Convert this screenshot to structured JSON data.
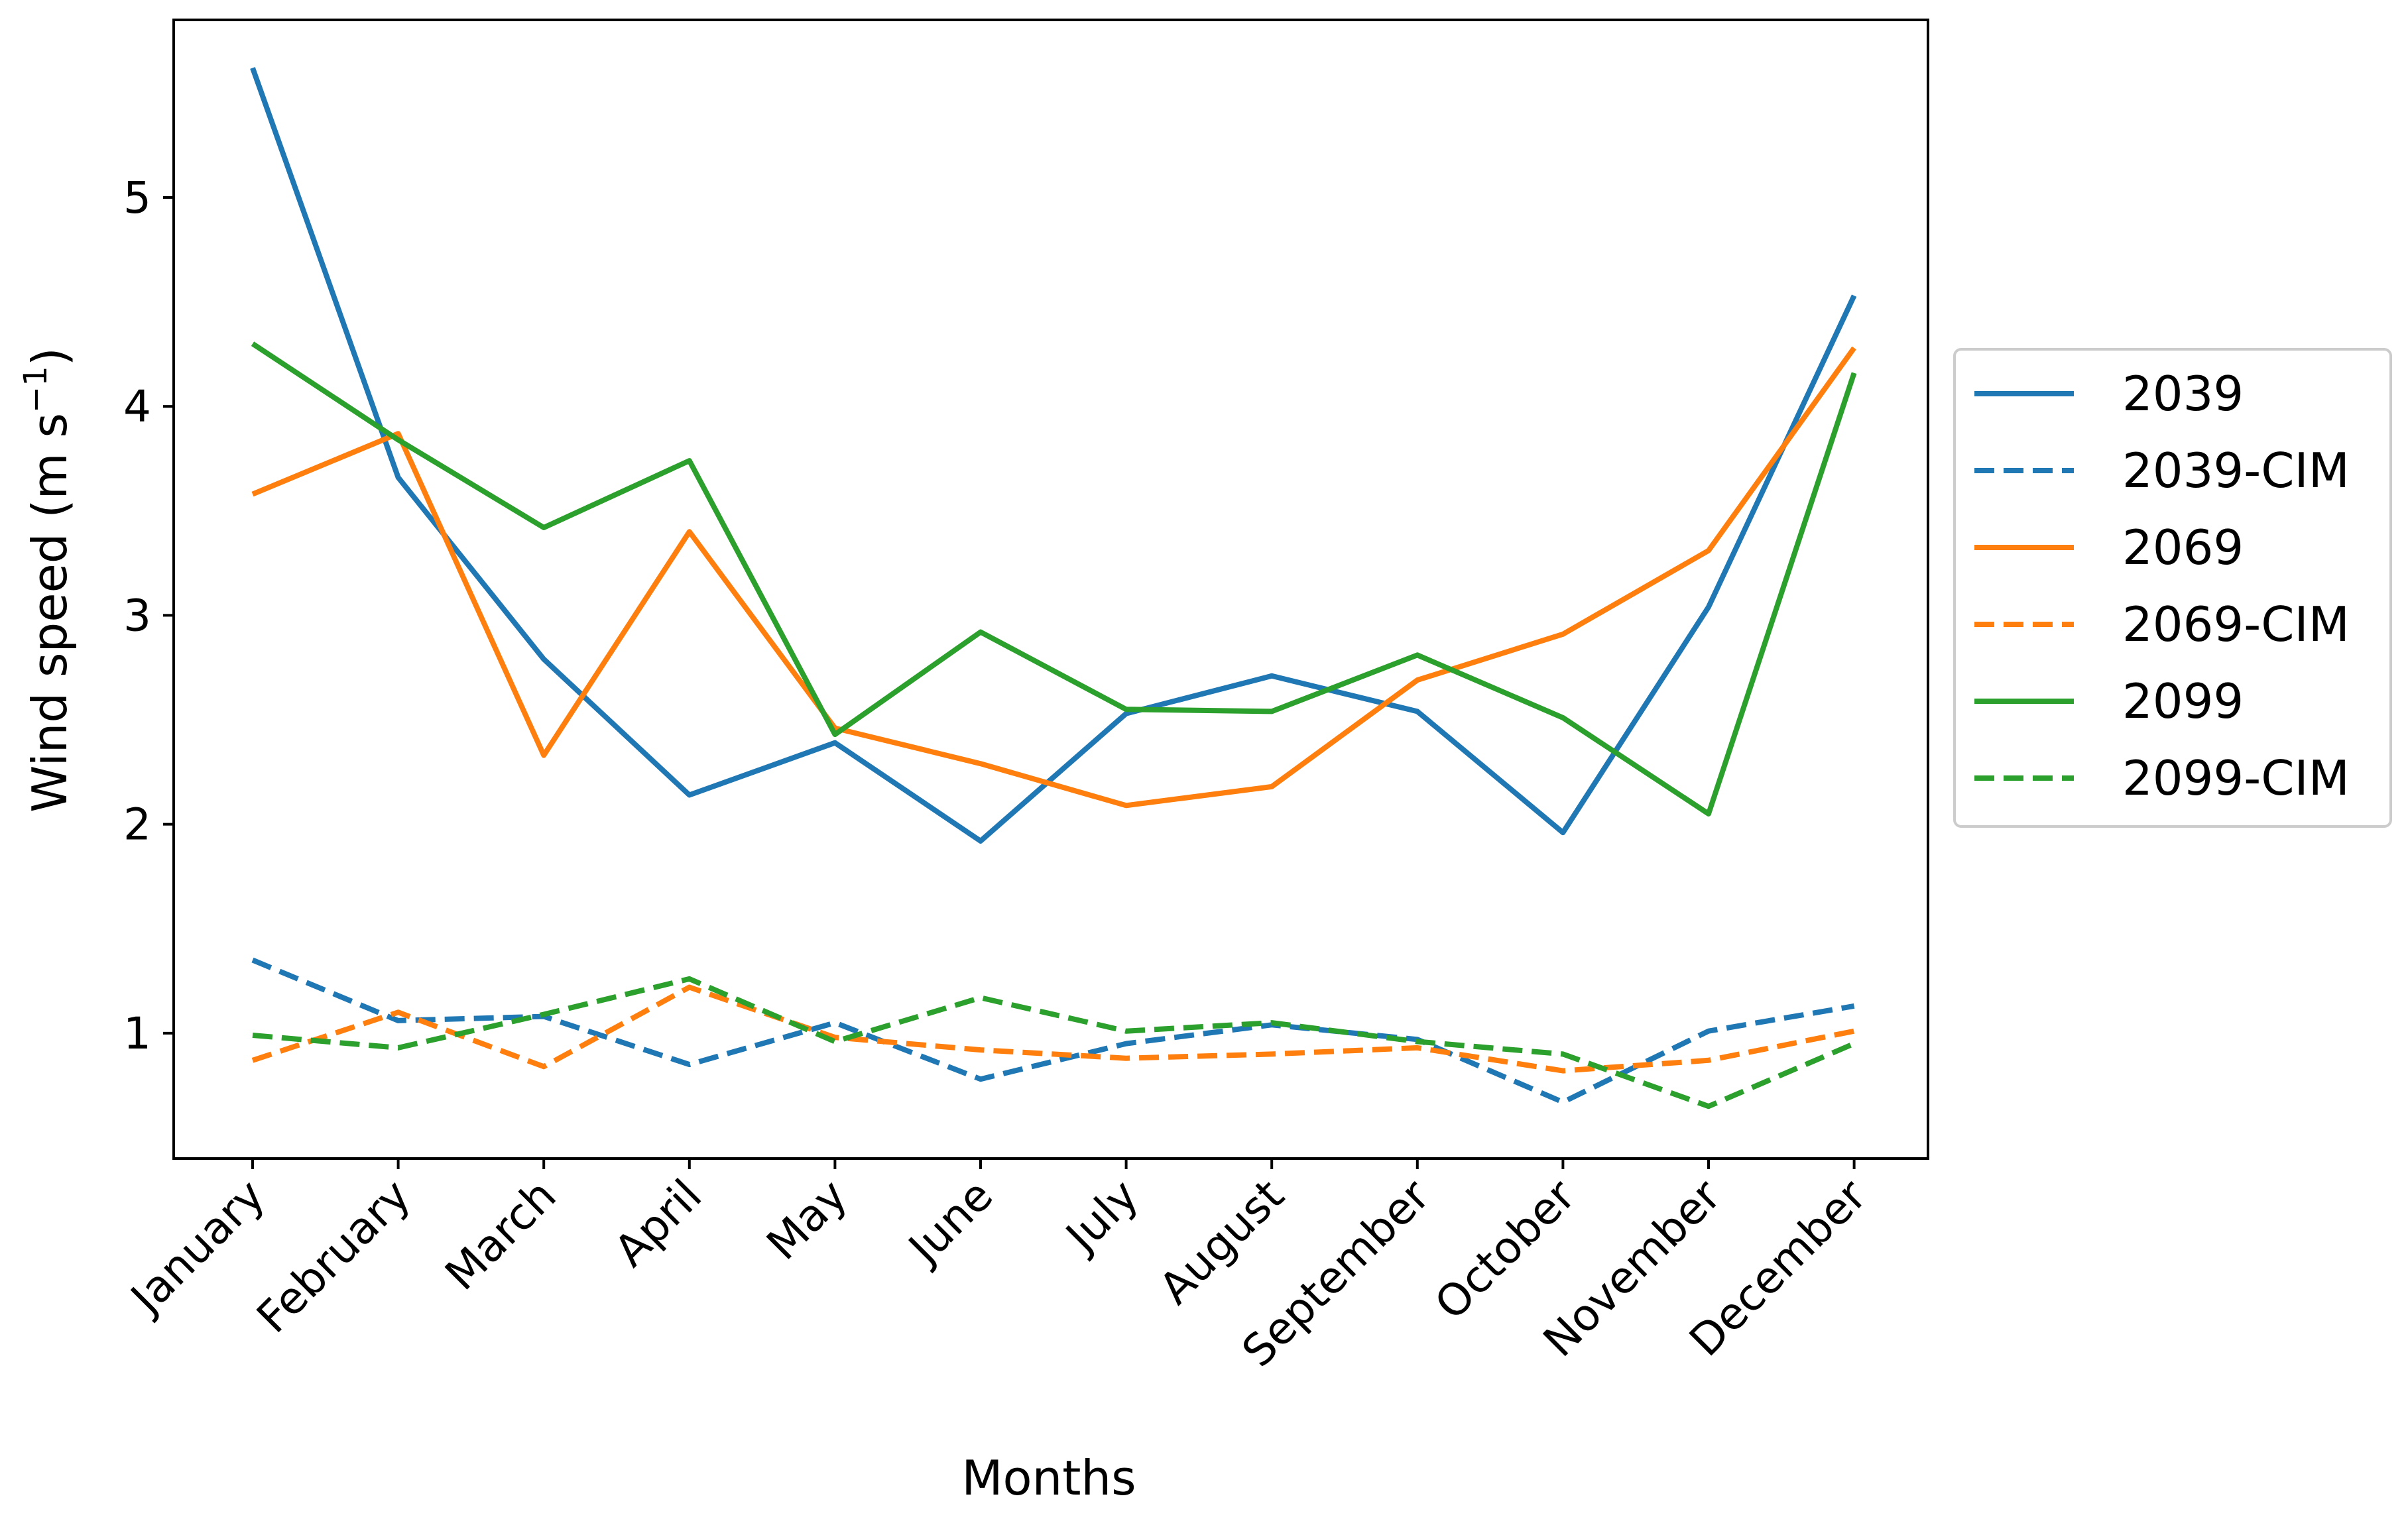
{
  "chart_data": {
    "type": "line",
    "title": "",
    "xlabel": "Months",
    "ylabel_prefix": "Wind speed (m s",
    "ylabel_exponent": "−1",
    "ylabel_suffix": ")",
    "ylabel": "Wind speed (m s−1)",
    "categories": [
      "January",
      "February",
      "March",
      "April",
      "May",
      "June",
      "July",
      "August",
      "September",
      "October",
      "November",
      "December"
    ],
    "ylim": [
      0.4,
      5.85
    ],
    "yticks": [
      1,
      2,
      3,
      4,
      5
    ],
    "grid": false,
    "legend_position": "center-right outside",
    "series": [
      {
        "name": "2039",
        "color": "#1f77b4",
        "style": "solid",
        "values": [
          5.62,
          3.66,
          2.79,
          2.14,
          2.39,
          1.92,
          2.53,
          2.71,
          2.54,
          1.96,
          3.04,
          4.53
        ]
      },
      {
        "name": "2039-CIM",
        "color": "#1f77b4",
        "style": "dashed",
        "values": [
          1.35,
          1.06,
          1.08,
          0.85,
          1.05,
          0.78,
          0.95,
          1.04,
          0.97,
          0.67,
          1.01,
          1.13
        ]
      },
      {
        "name": "2069",
        "color": "#ff7f0e",
        "style": "solid",
        "values": [
          3.58,
          3.87,
          2.33,
          3.4,
          2.46,
          2.29,
          2.09,
          2.18,
          2.69,
          2.91,
          3.31,
          4.28
        ]
      },
      {
        "name": "2069-CIM",
        "color": "#ff7f0e",
        "style": "dashed",
        "values": [
          0.87,
          1.1,
          0.84,
          1.22,
          0.98,
          0.92,
          0.88,
          0.9,
          0.93,
          0.82,
          0.87,
          1.01
        ]
      },
      {
        "name": "2099",
        "color": "#2ca02c",
        "style": "solid",
        "values": [
          4.3,
          3.84,
          3.42,
          3.74,
          2.43,
          2.92,
          2.55,
          2.54,
          2.81,
          2.51,
          2.05,
          4.16
        ]
      },
      {
        "name": "2099-CIM",
        "color": "#2ca02c",
        "style": "dashed",
        "values": [
          0.99,
          0.93,
          1.09,
          1.26,
          0.96,
          1.17,
          1.01,
          1.05,
          0.96,
          0.9,
          0.65,
          0.95
        ]
      }
    ]
  }
}
